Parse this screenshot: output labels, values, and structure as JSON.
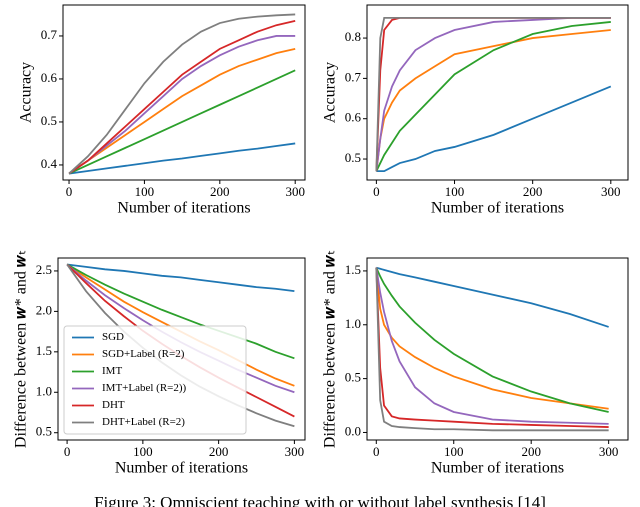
{
  "chart_data": [
    {
      "type": "line",
      "xlabel": "Number of iterations",
      "ylabel": "Accuracy",
      "x": [
        0,
        25,
        50,
        75,
        100,
        125,
        150,
        175,
        200,
        225,
        250,
        275,
        300
      ],
      "xlim": [
        -8,
        313
      ],
      "xticks": [
        0,
        100,
        200,
        300
      ],
      "ylim": [
        0.365,
        0.772
      ],
      "yticks": [
        0.4,
        0.5,
        0.6,
        0.7
      ],
      "series": [
        {
          "color": "#1f77b4",
          "values": [
            0.38,
            0.386,
            0.392,
            0.398,
            0.404,
            0.41,
            0.415,
            0.421,
            0.427,
            0.433,
            0.438,
            0.444,
            0.45
          ]
        },
        {
          "color": "#ff7f0e",
          "values": [
            0.38,
            0.41,
            0.44,
            0.47,
            0.5,
            0.53,
            0.56,
            0.585,
            0.61,
            0.63,
            0.645,
            0.66,
            0.67
          ]
        },
        {
          "color": "#2ca02c",
          "values": [
            0.38,
            0.4,
            0.42,
            0.44,
            0.46,
            0.48,
            0.5,
            0.52,
            0.54,
            0.56,
            0.58,
            0.6,
            0.62
          ]
        },
        {
          "color": "#9467bd",
          "values": [
            0.38,
            0.41,
            0.445,
            0.48,
            0.52,
            0.56,
            0.6,
            0.63,
            0.655,
            0.675,
            0.69,
            0.7,
            0.7
          ]
        },
        {
          "color": "#d62728",
          "values": [
            0.38,
            0.41,
            0.45,
            0.49,
            0.53,
            0.57,
            0.61,
            0.64,
            0.67,
            0.69,
            0.71,
            0.725,
            0.735
          ]
        },
        {
          "color": "#7f7f7f",
          "values": [
            0.38,
            0.42,
            0.47,
            0.53,
            0.59,
            0.64,
            0.68,
            0.71,
            0.73,
            0.74,
            0.745,
            0.748,
            0.75
          ]
        }
      ]
    },
    {
      "type": "line",
      "xlabel": "Number of iterations",
      "ylabel": "Accuracy",
      "x": [
        0,
        5,
        10,
        20,
        30,
        50,
        75,
        100,
        150,
        200,
        250,
        300
      ],
      "xlim": [
        -12,
        322
      ],
      "xticks": [
        0,
        100,
        200,
        300
      ],
      "ylim": [
        0.448,
        0.882
      ],
      "yticks": [
        0.5,
        0.6,
        0.7,
        0.8
      ],
      "series": [
        {
          "color": "#1f77b4",
          "values": [
            0.47,
            0.47,
            0.47,
            0.48,
            0.49,
            0.5,
            0.52,
            0.53,
            0.56,
            0.6,
            0.64,
            0.68
          ]
        },
        {
          "color": "#ff7f0e",
          "values": [
            0.47,
            0.55,
            0.6,
            0.64,
            0.67,
            0.7,
            0.73,
            0.76,
            0.78,
            0.8,
            0.81,
            0.82
          ]
        },
        {
          "color": "#2ca02c",
          "values": [
            0.47,
            0.49,
            0.51,
            0.54,
            0.57,
            0.61,
            0.66,
            0.71,
            0.77,
            0.81,
            0.83,
            0.84
          ]
        },
        {
          "color": "#9467bd",
          "values": [
            0.47,
            0.55,
            0.62,
            0.68,
            0.72,
            0.77,
            0.8,
            0.82,
            0.84,
            0.845,
            0.85,
            0.85
          ]
        },
        {
          "color": "#d62728",
          "values": [
            0.47,
            0.72,
            0.82,
            0.845,
            0.85,
            0.85,
            0.85,
            0.85,
            0.85,
            0.85,
            0.85,
            0.85
          ]
        },
        {
          "color": "#7f7f7f",
          "values": [
            0.47,
            0.8,
            0.85,
            0.85,
            0.85,
            0.85,
            0.85,
            0.85,
            0.85,
            0.85,
            0.85,
            0.85
          ]
        }
      ]
    },
    {
      "type": "line",
      "xlabel": "Number of iterations",
      "ylabel": "Difference between 𝒘* and 𝒘ₜ",
      "x": [
        0,
        25,
        50,
        75,
        100,
        125,
        150,
        175,
        200,
        225,
        250,
        275,
        300
      ],
      "xlim": [
        -12,
        314
      ],
      "xticks": [
        0,
        100,
        200,
        300
      ],
      "ylim": [
        0.41,
        2.66
      ],
      "yticks": [
        0.5,
        {
          "value": 1,
          "label": "1.0"
        },
        1.5,
        {
          "value": 2,
          "label": "2.0"
        },
        2.5
      ],
      "legend": "lower left",
      "series": [
        {
          "name": "SGD",
          "color": "#1f77b4",
          "values": [
            2.58,
            2.55,
            2.52,
            2.5,
            2.47,
            2.44,
            2.42,
            2.39,
            2.36,
            2.33,
            2.3,
            2.28,
            2.25
          ]
        },
        {
          "name": "SGD+Label (R=2)",
          "color": "#ff7f0e",
          "values": [
            2.58,
            2.42,
            2.27,
            2.12,
            1.99,
            1.87,
            1.75,
            1.63,
            1.52,
            1.4,
            1.28,
            1.17,
            1.08
          ]
        },
        {
          "name": "IMT",
          "color": "#2ca02c",
          "values": [
            2.58,
            2.45,
            2.33,
            2.22,
            2.12,
            2.02,
            1.93,
            1.84,
            1.76,
            1.68,
            1.6,
            1.5,
            1.42
          ]
        },
        {
          "name": "IMT+Label (R=2))",
          "color": "#9467bd",
          "values": [
            2.58,
            2.38,
            2.2,
            2.04,
            1.89,
            1.75,
            1.62,
            1.5,
            1.39,
            1.28,
            1.18,
            1.08,
            1.0
          ]
        },
        {
          "name": "DHT",
          "color": "#d62728",
          "values": [
            2.58,
            2.35,
            2.13,
            1.94,
            1.76,
            1.6,
            1.45,
            1.31,
            1.18,
            1.06,
            0.94,
            0.82,
            0.7
          ]
        },
        {
          "name": "DHT+Label (R=2)",
          "color": "#7f7f7f",
          "values": [
            2.58,
            2.25,
            1.98,
            1.75,
            1.55,
            1.37,
            1.21,
            1.07,
            0.95,
            0.84,
            0.74,
            0.65,
            0.58
          ]
        }
      ]
    },
    {
      "type": "line",
      "xlabel": "Number of iterations",
      "ylabel": "Difference between 𝒘* and 𝒘ₜ",
      "x": [
        0,
        5,
        10,
        20,
        30,
        50,
        75,
        100,
        150,
        200,
        250,
        300
      ],
      "xlim": [
        -12,
        325
      ],
      "xticks": [
        0,
        100,
        200,
        300
      ],
      "ylim": [
        -0.07,
        1.62
      ],
      "yticks": [
        {
          "value": 0,
          "label": "0.0"
        },
        0.5,
        {
          "value": 1,
          "label": "1.0"
        },
        1.5
      ],
      "series": [
        {
          "color": "#1f77b4",
          "values": [
            1.53,
            1.52,
            1.51,
            1.49,
            1.47,
            1.44,
            1.4,
            1.36,
            1.28,
            1.2,
            1.1,
            0.98
          ]
        },
        {
          "color": "#ff7f0e",
          "values": [
            1.53,
            1.15,
            1.0,
            0.88,
            0.8,
            0.7,
            0.6,
            0.52,
            0.4,
            0.32,
            0.27,
            0.22
          ]
        },
        {
          "color": "#2ca02c",
          "values": [
            1.53,
            1.45,
            1.38,
            1.27,
            1.17,
            1.02,
            0.86,
            0.73,
            0.52,
            0.38,
            0.27,
            0.19
          ]
        },
        {
          "color": "#9467bd",
          "values": [
            1.53,
            1.3,
            1.12,
            0.85,
            0.66,
            0.42,
            0.27,
            0.19,
            0.12,
            0.1,
            0.09,
            0.08
          ]
        },
        {
          "color": "#d62728",
          "values": [
            1.53,
            0.6,
            0.25,
            0.15,
            0.13,
            0.12,
            0.11,
            0.1,
            0.08,
            0.07,
            0.06,
            0.05
          ]
        },
        {
          "color": "#7f7f7f",
          "values": [
            1.53,
            0.3,
            0.1,
            0.06,
            0.05,
            0.04,
            0.03,
            0.03,
            0.02,
            0.02,
            0.02,
            0.02
          ]
        }
      ]
    }
  ],
  "caption": "Figure 3: Omniscient teaching with or without label synthesis [14]"
}
